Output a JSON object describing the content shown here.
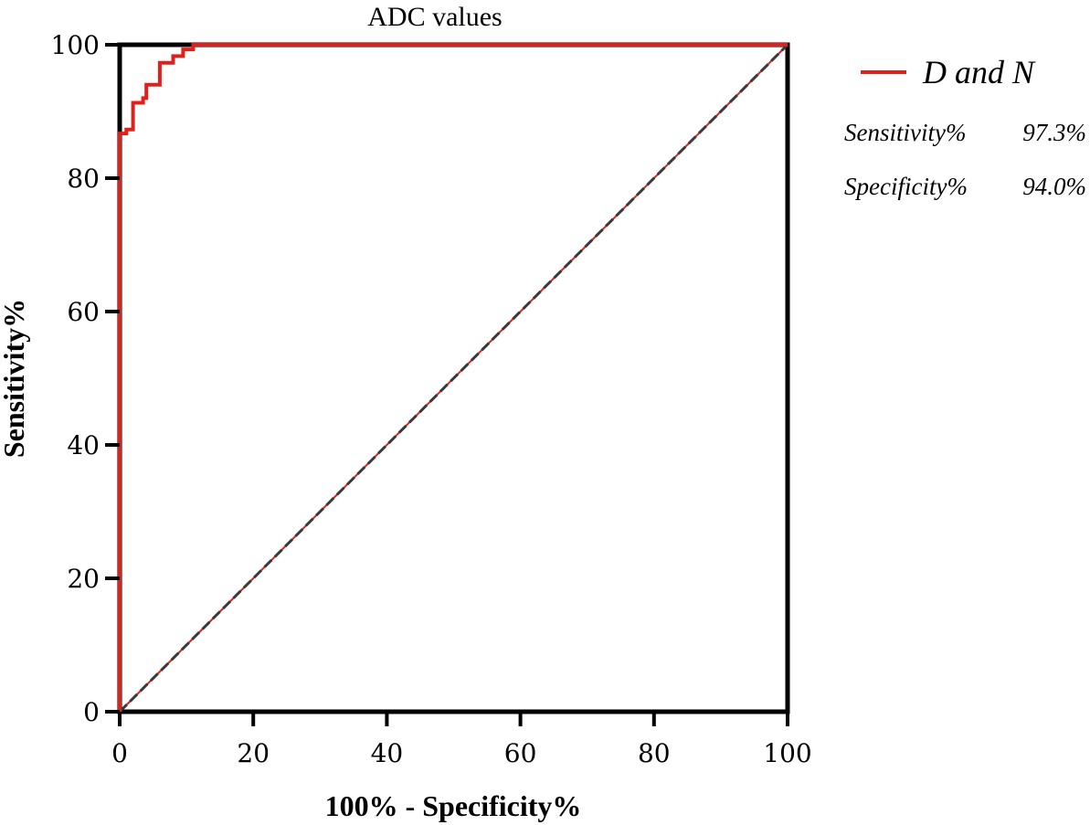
{
  "chart_data": {
    "type": "line",
    "title": "ADC values",
    "xlabel": "100% - Specificity%",
    "ylabel": "Sensitivity%",
    "xlim": [
      0,
      100
    ],
    "ylim": [
      0,
      100
    ],
    "x_ticks": [
      "0",
      "20",
      "40",
      "60",
      "80",
      "100"
    ],
    "y_ticks": [
      "0",
      "20",
      "40",
      "60",
      "80",
      "100"
    ],
    "grid": false,
    "legend_position": "right",
    "series": [
      {
        "name": "D and N",
        "color": "#e0201b",
        "style": "step",
        "points": [
          [
            0,
            0
          ],
          [
            0,
            86.7
          ],
          [
            1,
            86.7
          ],
          [
            1,
            87.3
          ],
          [
            2,
            87.3
          ],
          [
            2,
            91.3
          ],
          [
            3.5,
            91.3
          ],
          [
            3.5,
            92
          ],
          [
            4,
            92
          ],
          [
            4,
            94
          ],
          [
            6,
            94
          ],
          [
            6,
            97.3
          ],
          [
            8,
            97.3
          ],
          [
            8,
            98.3
          ],
          [
            9.5,
            98.3
          ],
          [
            9.5,
            99.3
          ],
          [
            11,
            99.3
          ],
          [
            11,
            100
          ],
          [
            100,
            100
          ]
        ]
      },
      {
        "name": "",
        "role": "reference",
        "color": "#e0201b",
        "dash_color": "#3a3a3a",
        "style": "dashed",
        "points": [
          [
            0,
            0
          ],
          [
            100,
            100
          ]
        ]
      }
    ],
    "legend": {
      "entries": [
        {
          "name": "D and N",
          "color": "#e0201b"
        }
      ],
      "stats": [
        {
          "label": "Sensitivity%",
          "value": "97.3%"
        },
        {
          "label": "Specificity%",
          "value": "94.0%"
        }
      ]
    }
  }
}
